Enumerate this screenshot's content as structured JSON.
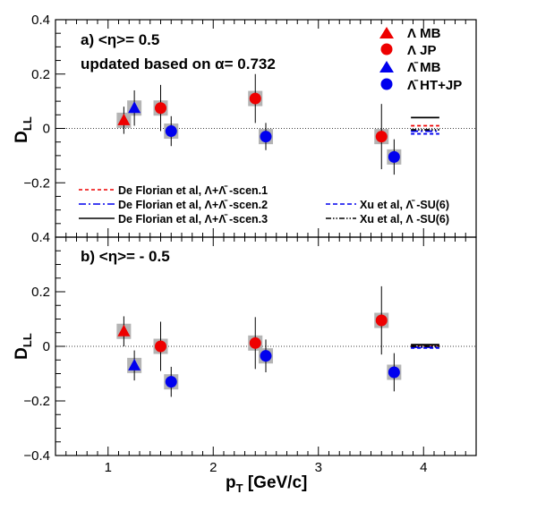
{
  "chart_data": [
    {
      "type": "scatter",
      "panel_label": "a) <η>= 0.5",
      "note": "updated based on α= 0.732",
      "ylabel": "D_LL",
      "ylim": [
        -0.4,
        0.4
      ],
      "yticks": [
        "0.4",
        "0.2",
        "0",
        "−0.2"
      ],
      "grid": false,
      "series": [
        {
          "name": "Λ MB",
          "marker": "triangle",
          "color": "#ee0000",
          "points": [
            {
              "x": 1.15,
              "y": 0.03,
              "err": 0.05
            }
          ]
        },
        {
          "name": "Λ JP",
          "marker": "circle",
          "color": "#ee0000",
          "points": [
            {
              "x": 1.5,
              "y": 0.075,
              "err": 0.085
            },
            {
              "x": 2.4,
              "y": 0.11,
              "err": 0.09
            },
            {
              "x": 3.6,
              "y": -0.03,
              "err": 0.12
            }
          ]
        },
        {
          "name": "Λ̄ MB",
          "marker": "triangle",
          "color": "#0000ee",
          "points": [
            {
              "x": 1.25,
              "y": 0.075,
              "err": 0.065
            }
          ]
        },
        {
          "name": "Λ̄ HT+JP",
          "marker": "circle",
          "color": "#0000ee",
          "points": [
            {
              "x": 1.6,
              "y": -0.01,
              "err": 0.055
            },
            {
              "x": 2.5,
              "y": -0.03,
              "err": 0.05
            },
            {
              "x": 3.72,
              "y": -0.105,
              "err": 0.065
            }
          ]
        }
      ],
      "model_lines": [
        {
          "name": "De Florian et al, Λ+Λ̄ -scen.1",
          "style": "dashed",
          "color": "#ee0000",
          "y": 0.01
        },
        {
          "name": "De Florian et al, Λ+Λ̄ -scen.2",
          "style": "dashdot",
          "color": "#0000ee",
          "y": -0.01
        },
        {
          "name": "De Florian et al, Λ+Λ̄ -scen.3",
          "style": "solid",
          "color": "#000000",
          "y": 0.04
        },
        {
          "name": "Xu et al, Λ̄ -SU(6)",
          "style": "dashed",
          "color": "#0000ee",
          "y": -0.02
        },
        {
          "name": "Xu et al, Λ -SU(6)",
          "style": "dashdotdot",
          "color": "#000000",
          "y": -0.005
        }
      ],
      "model_x": [
        3.88,
        4.15
      ]
    },
    {
      "type": "scatter",
      "panel_label": "b) <η>= - 0.5",
      "ylabel": "D_LL",
      "ylim": [
        -0.4,
        0.4
      ],
      "yticks": [
        "0.4",
        "0.2",
        "0",
        "−0.2",
        "−0.4"
      ],
      "xlabel": "p_T [GeV/c]",
      "xlim": [
        0.5,
        4.5
      ],
      "xticks": [
        "1",
        "2",
        "3",
        "4"
      ],
      "grid": false,
      "series": [
        {
          "name": "Λ MB",
          "marker": "triangle",
          "color": "#ee0000",
          "points": [
            {
              "x": 1.15,
              "y": 0.055,
              "err": 0.055
            }
          ]
        },
        {
          "name": "Λ JP",
          "marker": "circle",
          "color": "#ee0000",
          "points": [
            {
              "x": 1.5,
              "y": 0.0,
              "err": 0.09
            },
            {
              "x": 2.4,
              "y": 0.012,
              "err": 0.095
            },
            {
              "x": 3.6,
              "y": 0.095,
              "err": 0.125
            }
          ]
        },
        {
          "name": "Λ̄ MB",
          "marker": "triangle",
          "color": "#0000ee",
          "points": [
            {
              "x": 1.25,
              "y": -0.07,
              "err": 0.055
            }
          ]
        },
        {
          "name": "Λ̄ HT+JP",
          "marker": "circle",
          "color": "#0000ee",
          "points": [
            {
              "x": 1.6,
              "y": -0.13,
              "err": 0.055
            },
            {
              "x": 2.5,
              "y": -0.035,
              "err": 0.06
            },
            {
              "x": 3.72,
              "y": -0.095,
              "err": 0.07
            }
          ]
        }
      ],
      "model_lines": [
        {
          "style": "dashed",
          "color": "#ee0000",
          "y": 0.004
        },
        {
          "style": "dashdot",
          "color": "#0000ee",
          "y": -0.003
        },
        {
          "style": "solid",
          "color": "#000000",
          "y": 0.006
        },
        {
          "style": "dashed",
          "color": "#0000ee",
          "y": -0.006
        },
        {
          "style": "dashdotdot",
          "color": "#000000",
          "y": 0.0
        }
      ],
      "model_x": [
        3.88,
        4.15
      ]
    }
  ],
  "legend": {
    "position": "top-right",
    "entries": [
      {
        "label": "Λ MB",
        "marker": "triangle",
        "color": "#ee0000"
      },
      {
        "label": "Λ JP",
        "marker": "circle",
        "color": "#ee0000"
      },
      {
        "label": "Λ̄ MB",
        "marker": "triangle",
        "color": "#0000ee"
      },
      {
        "label": "Λ̄ HT+JP",
        "marker": "circle",
        "color": "#0000ee"
      }
    ]
  },
  "model_legend": {
    "position": "bottom of top panel",
    "entries": [
      {
        "label": "De Florian et al, Λ+Λ̄ -scen.1",
        "style": "dashed",
        "color": "#ee0000"
      },
      {
        "label": "De Florian et al, Λ+Λ̄ -scen.2",
        "style": "dashdot",
        "color": "#0000ee"
      },
      {
        "label": "De Florian et al, Λ+Λ̄ -scen.3",
        "style": "solid",
        "color": "#000000"
      },
      {
        "label": "Xu et al, Λ̄ -SU(6)",
        "style": "dashed",
        "color": "#0000ee"
      },
      {
        "label": "Xu et al, Λ -SU(6)",
        "style": "dashdotdot",
        "color": "#000000"
      }
    ]
  },
  "colors": {
    "sys_box": "#b4b4b4",
    "red": "#ee0000",
    "blue": "#0000ee"
  }
}
